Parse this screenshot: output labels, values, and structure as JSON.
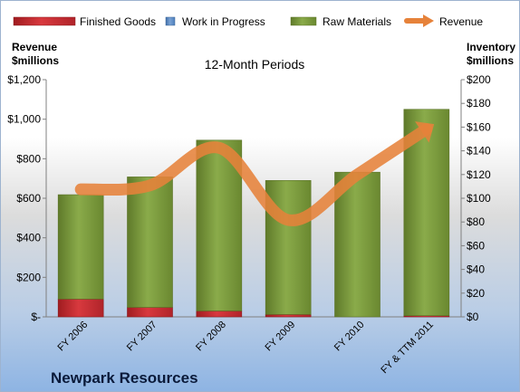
{
  "chart_data": {
    "type": "bar",
    "title": "12-Month Periods",
    "company": "Newpark Resources",
    "categories": [
      "FY 2006",
      "FY 2007",
      "FY 2008",
      "FY 2009",
      "FY 2010",
      "FY & TTM 2011"
    ],
    "left_axis": {
      "label_line1": "Revenue",
      "label_line2": "$millions",
      "ylim": [
        0,
        1200
      ],
      "ticks": [
        "$-",
        "$200",
        "$400",
        "$600",
        "$800",
        "$1,000",
        "$1,200"
      ]
    },
    "right_axis": {
      "label_line1": "Inventory",
      "label_line2": "$millions",
      "ylim": [
        0,
        200
      ],
      "ticks": [
        "$0",
        "$20",
        "$40",
        "$60",
        "$80",
        "$100",
        "$120",
        "$140",
        "$160",
        "$180",
        "$200"
      ]
    },
    "series": [
      {
        "name": "Finished Goods",
        "type": "stacked-bar",
        "axis": "right",
        "color": "#c0262b",
        "values": [
          15,
          8,
          5,
          2,
          0,
          1
        ]
      },
      {
        "name": "Work in Progress",
        "type": "stacked-bar",
        "axis": "right",
        "color": "#4f81bd",
        "values": [
          0,
          0,
          0,
          0,
          0,
          0
        ]
      },
      {
        "name": "Raw Materials",
        "type": "stacked-bar",
        "axis": "right",
        "color": "#77933c",
        "values": [
          88,
          110,
          144,
          113,
          122,
          174
        ]
      },
      {
        "name": "Revenue",
        "type": "line",
        "axis": "left",
        "color": "#e6823a",
        "values": [
          645,
          665,
          855,
          490,
          720,
          950
        ]
      }
    ],
    "legend_position": "top",
    "grid": false
  }
}
